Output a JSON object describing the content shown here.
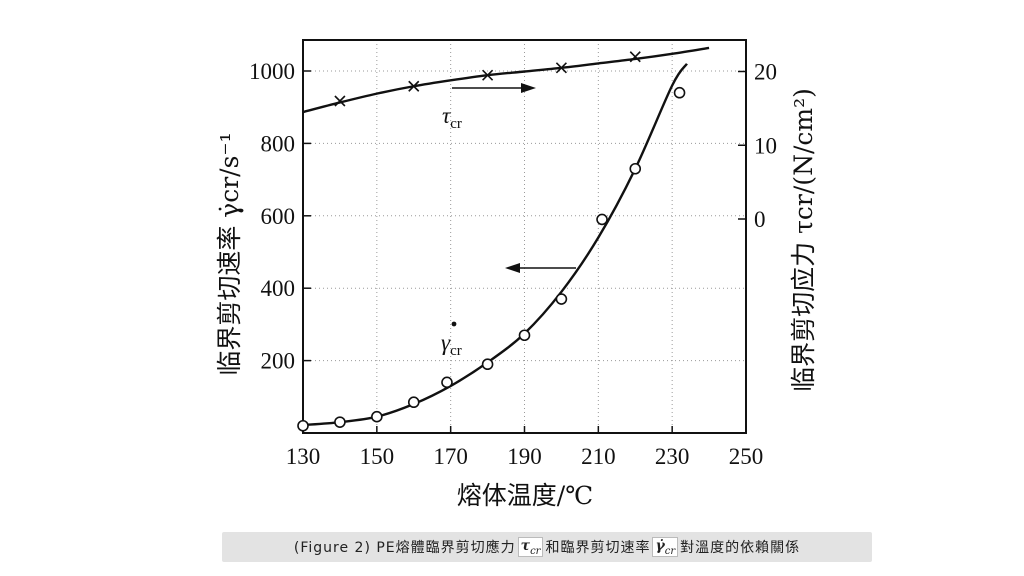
{
  "chart_data": {
    "type": "line",
    "x": [
      130,
      140,
      150,
      160,
      170,
      180,
      190,
      200,
      210,
      220,
      230
    ],
    "x_ticks": [
      "130",
      "150",
      "170",
      "190",
      "210",
      "230",
      "250"
    ],
    "xlabel": "熔体温度/℃",
    "xlim": [
      130,
      250
    ],
    "ylabel_left": "临界剪切速率 γ̇cr/s⁻¹",
    "ylim_left": [
      0,
      1100
    ],
    "y_ticks_left": [
      "200",
      "400",
      "600",
      "800",
      "1000"
    ],
    "ylabel_right": "临界剪切应力 τcr/(N/cm²)",
    "y_ticks_right": [
      "0",
      "10",
      "20"
    ],
    "ylim_right": [
      -20,
      22
    ],
    "grid": true,
    "series": [
      {
        "name": "γ̇cr",
        "axis": "left",
        "marker": "circle",
        "points_x": [
          130,
          140,
          150,
          160,
          169,
          180,
          190,
          200,
          211,
          220,
          232
        ],
        "points_y": [
          20,
          30,
          45,
          85,
          140,
          190,
          270,
          370,
          590,
          730,
          940
        ],
        "curve_x": [
          130,
          140,
          150,
          160,
          170,
          180,
          190,
          200,
          210,
          220,
          230,
          234
        ],
        "curve_y": [
          22,
          30,
          45,
          80,
          130,
          195,
          275,
          390,
          540,
          730,
          960,
          1020
        ]
      },
      {
        "name": "τcr",
        "axis": "right",
        "marker": "x",
        "points_x": [
          140,
          160,
          180,
          200,
          220
        ],
        "points_y": [
          16,
          18,
          19.5,
          20.5,
          22
        ],
        "curve_x": [
          130,
          140,
          150,
          160,
          170,
          180,
          190,
          200,
          210,
          220,
          230,
          240
        ],
        "curve_y": [
          14.5,
          15.8,
          17,
          18,
          18.8,
          19.5,
          20,
          20.5,
          21.1,
          21.7,
          22.4,
          23.2
        ]
      }
    ]
  },
  "labels": {
    "tau": "τ",
    "tau_sub": "cr",
    "gamma": "γ",
    "gamma_sub": "cr"
  },
  "caption": {
    "prefix": "(Figure 2)  PE熔體臨界剪切應力",
    "tau_symbol": "τ",
    "tau_sub": "cr",
    "middle": "和臨界剪切速率",
    "gamma_symbol": "γ̇",
    "gamma_sub": "cr",
    "suffix": "對溫度的依賴關係"
  }
}
